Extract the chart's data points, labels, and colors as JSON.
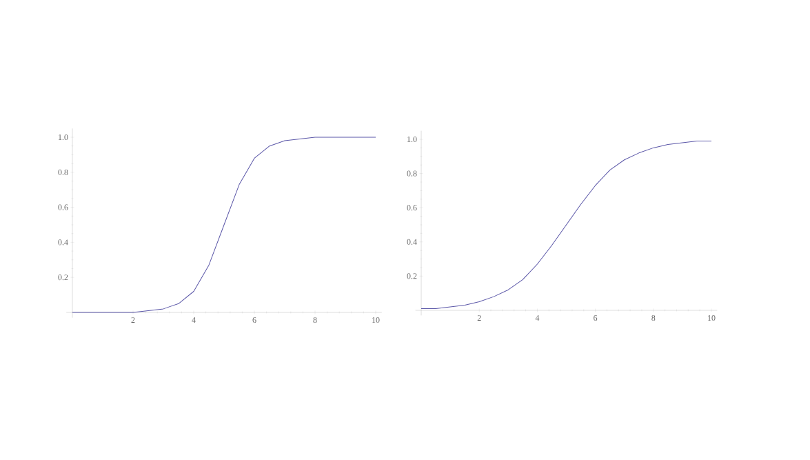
{
  "chart_data": [
    {
      "type": "line",
      "x": [
        0,
        0.5,
        1,
        1.5,
        2,
        2.5,
        3,
        3.5,
        4,
        4.5,
        5,
        5.5,
        6,
        6.5,
        7,
        7.5,
        8,
        8.5,
        9,
        9.5,
        10
      ],
      "series": [
        {
          "color": "#5b57a8",
          "values": [
            0.0,
            0.0,
            0.0,
            0.0,
            0.0,
            0.01,
            0.02,
            0.05,
            0.12,
            0.27,
            0.5,
            0.73,
            0.88,
            0.95,
            0.98,
            0.99,
            1.0,
            1.0,
            1.0,
            1.0,
            1.0
          ]
        }
      ],
      "xlim": [
        -0.2,
        10.2
      ],
      "ylim": [
        -0.03,
        1.05
      ],
      "xticks": [
        2,
        4,
        6,
        8,
        10
      ],
      "yticks": [
        0.2,
        0.4,
        0.6,
        0.8,
        {
          "value": 1,
          "label": "1.0"
        }
      ],
      "grid": false,
      "marker": "none",
      "line_style": "solid"
    },
    {
      "type": "line",
      "x": [
        0,
        0.5,
        1,
        1.5,
        2,
        2.5,
        3,
        3.5,
        4,
        4.5,
        5,
        5.5,
        6,
        6.5,
        7,
        7.5,
        8,
        8.5,
        9,
        9.5,
        10
      ],
      "series": [
        {
          "color": "#5b57a8",
          "values": [
            0.01,
            0.01,
            0.02,
            0.03,
            0.05,
            0.08,
            0.12,
            0.18,
            0.27,
            0.38,
            0.5,
            0.62,
            0.73,
            0.82,
            0.88,
            0.92,
            0.95,
            0.97,
            0.98,
            0.99,
            0.99
          ]
        }
      ],
      "xlim": [
        -0.2,
        10.2
      ],
      "ylim": [
        -0.03,
        1.05
      ],
      "xticks": [
        2,
        4,
        6,
        8,
        10
      ],
      "yticks": [
        0.2,
        0.4,
        0.6,
        0.8,
        {
          "value": 1,
          "label": "1.0"
        }
      ],
      "grid": false,
      "marker": "none",
      "line_style": "solid"
    }
  ]
}
